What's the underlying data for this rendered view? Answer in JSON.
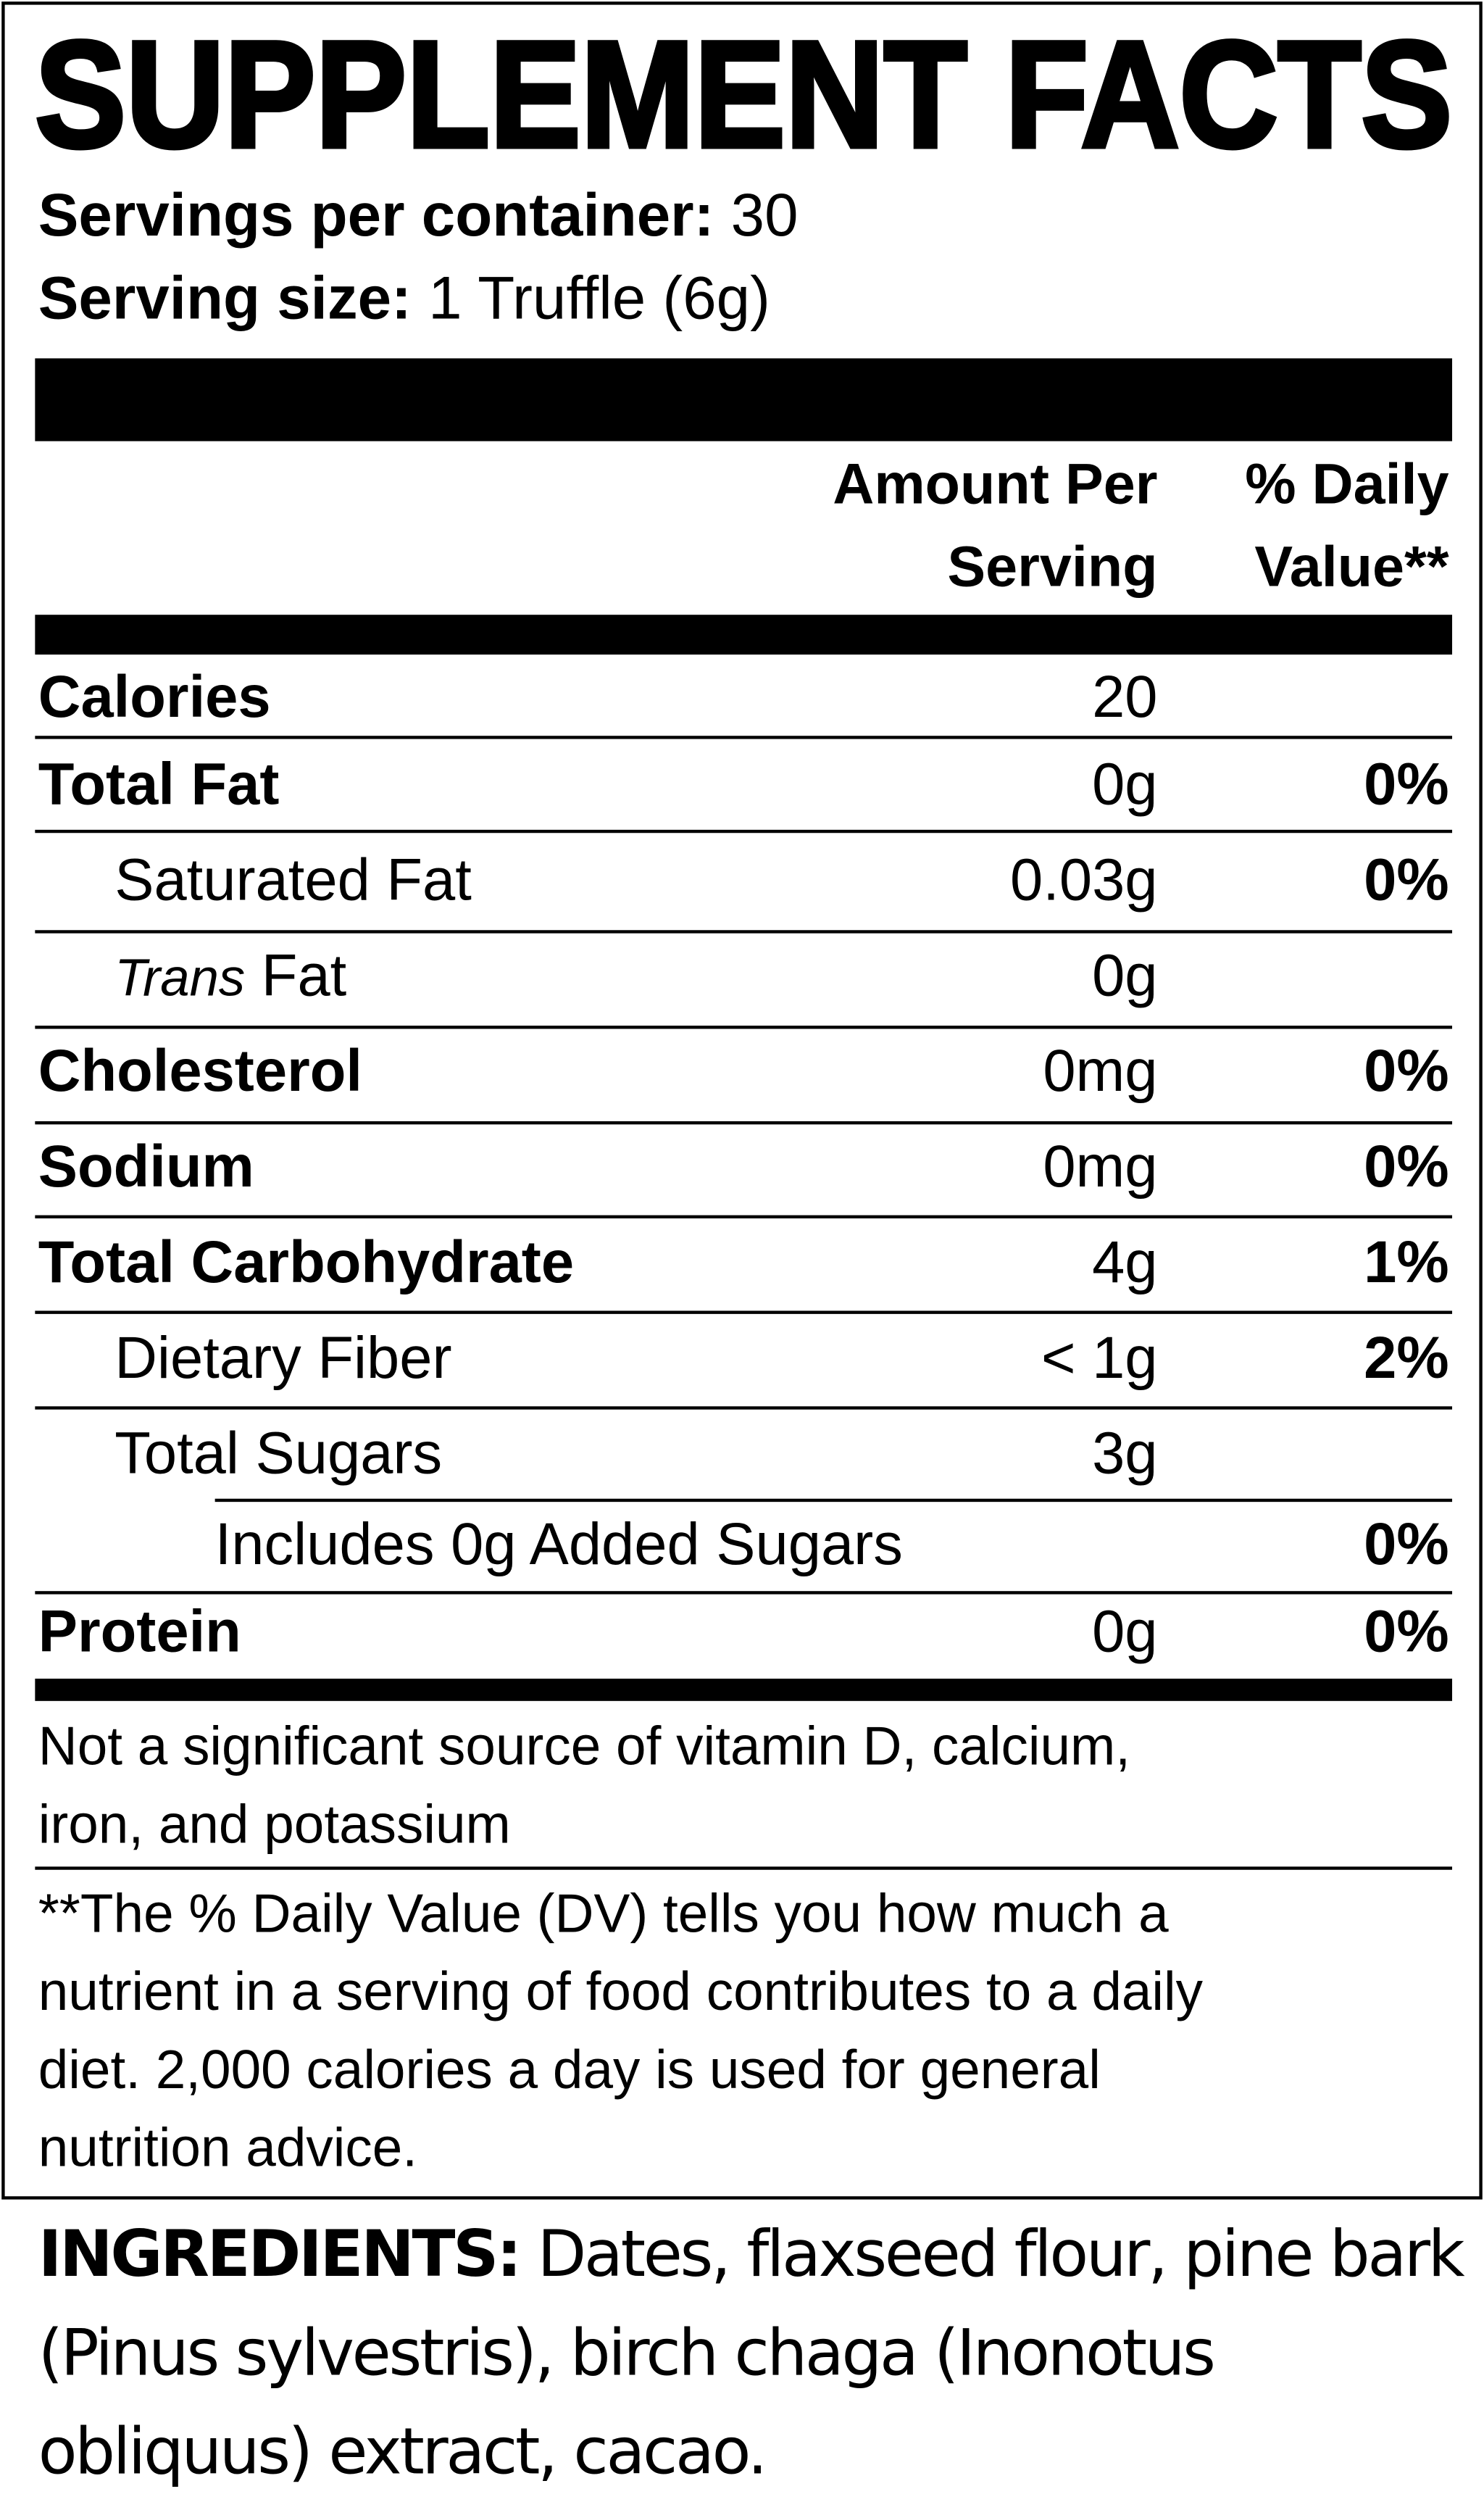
{
  "title": "SUPPLEMENT FACTS",
  "servings_per_container": {
    "label": "Servings per container:",
    "value": "30"
  },
  "serving_size": {
    "label": "Serving size:",
    "value": "1 Truffle (6g)"
  },
  "header": {
    "amount_line1": "Amount Per",
    "amount_line2": "Serving",
    "dv_line1": "% Daily",
    "dv_line2": "Value**"
  },
  "rows": [
    {
      "label": "Calories",
      "amount": "20",
      "dv": ""
    },
    {
      "label": "Total Fat",
      "amount": "0g",
      "dv": "0%"
    },
    {
      "label": "Saturated Fat",
      "amount": "0.03g",
      "dv": "0%"
    },
    {
      "label_italic": "Trans",
      "label": "Fat",
      "amount": "0g",
      "dv": ""
    },
    {
      "label": "Cholesterol",
      "amount": "0mg",
      "dv": "0%"
    },
    {
      "label": "Sodium",
      "amount": "0mg",
      "dv": "0%"
    },
    {
      "label": "Total Carbohydrate",
      "amount": "4g",
      "dv": "1%"
    },
    {
      "label": "Dietary Fiber",
      "amount": "< 1g",
      "dv": "2%"
    },
    {
      "label": "Total Sugars",
      "amount": "3g",
      "dv": ""
    },
    {
      "label": "Includes 0g Added Sugars",
      "amount": "",
      "dv": "0%"
    },
    {
      "label": "Protein",
      "amount": "0g",
      "dv": "0%"
    }
  ],
  "footnote1": [
    "Not a significant source of vitamin D, calcium,",
    "iron, and potassium"
  ],
  "footnote2": [
    "**The % Daily Value (DV) tells you how much a",
    "nutrient in a serving of food contributes to a daily",
    "diet. 2,000 calories a day is used for general",
    "nutrition advice."
  ],
  "ingredients": {
    "label": "INGREDIENTS:",
    "text": " Dates, flaxseed flour, pine bark (Pinus sylvestris), birch chaga (Inonotus obliquus) extract, cacao."
  }
}
